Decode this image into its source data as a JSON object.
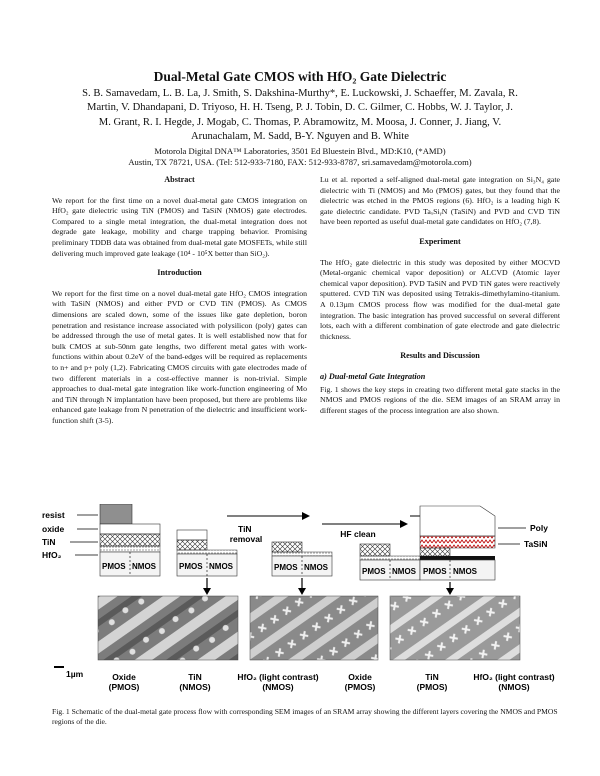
{
  "title": "Dual-Metal Gate CMOS with HfO₂ Gate Dielectric",
  "authors": [
    "S. B. Samavedam, L. B. La, J. Smith, S. Dakshina-Murthy*, E. Luckowski, J. Schaeffer, M. Zavala, R.",
    "Martin, V. Dhandapani, D. Triyoso, H. H. Tseng, P. J. Tobin, D. C. Gilmer, C. Hobbs, W. J. Taylor, J.",
    "M. Grant, R. I. Hegde, J. Mogab, C. Thomas, P. Abramowitz, M. Moosa, J. Conner, J. Jiang, V.",
    "Arunachalam, M. Sadd, B-Y. Nguyen and B. White"
  ],
  "affiliation": {
    "line1": "Motorola Digital DNA™ Laboratories, 3501 Ed Bluestein Blvd., MD:K10, (*AMD)",
    "line2": "Austin, TX 78721, USA. (Tel: 512-933-7180, FAX: 512-933-8787, sri.samavedam@motorola.com)"
  },
  "left_column": {
    "abstract_heading": "Abstract",
    "abstract_text": "We report for the first time on a novel dual-metal gate CMOS integration on HfO₂ gate dielectric using TiN (PMOS) and TaSiN (NMOS) gate electrodes. Compared to a single metal integration, the dual-metal integration does not degrade gate leakage, mobility and charge trapping behavior. Promising preliminary TDDB data was obtained from dual-metal gate MOSFETs, while still delivering much improved gate leakage (10⁴ - 10⁵X better than SiO₂).",
    "intro_heading": "Introduction",
    "intro_text": "We report for the first time on a novel dual-metal gate HfO₂ CMOS integration with TaSiN (NMOS) and either PVD or CVD TiN (PMOS). As CMOS dimensions are scaled down, some of the issues like gate depletion, boron penetration and resistance increase associated with polysilicon (poly) gates can be addressed through the use of metal gates. It is well established now that for bulk CMOS at sub-50nm gate lengths, two different metal gates with work-functions within about 0.2eV of the band-edges will be required as replacements to n+ and p+ poly (1,2). Fabricating CMOS circuits with gate electrodes made of two different materials in a cost-effective manner is non-trivial. Simple approaches to dual-metal gate integration like work-function engineering of Mo and TiN through N implantation have been proposed, but there are problems like enhanced gate leakage from N penetration of the dielectric and insufficient work-function shift (3-5)."
  },
  "right_column": {
    "lu_text": "Lu et al. reported a self-aligned dual-metal gate integration on Si₃N₄ gate dielectric with Ti (NMOS) and Mo (PMOS) gates, but they found that the dielectric was etched in the PMOS regions (6). HfO₂ is a leading high K gate dielectric candidate. PVD TaₓSiᵧN (TaSiN) and PVD and CVD TiN have been reported as useful dual-metal gate candidates on HfO₂ (7,8).",
    "experiment_heading": "Experiment",
    "experiment_text": "The HfO₂ gate dielectric in this study was deposited by either MOCVD (Metal-organic chemical vapor deposition) or ALCVD (Atomic layer chemical vapor deposition). PVD TaSiN and PVD TiN gates were reactively sputtered. CVD TiN was deposited using Tetrakis-dimethylamino-titanium. A 0.13µm CMOS process flow was modified for the dual-metal gate integration. The basic integration has proved successful on several different lots, each with a different combination of gate electrode and gate dielectric thickness.",
    "results_heading": "Results and Discussion",
    "sub_heading": "a)  Dual-metal Gate Integration",
    "results_text": "Fig. 1 shows the key steps in creating two different metal gate stacks in the NMOS and PMOS regions of the die. SEM images of an SRAM array in different stages of the process integration are also shown."
  },
  "figure": {
    "stack_labels": [
      "resist",
      "oxide",
      "TiN",
      "HfO₂"
    ],
    "step_labels": [
      "TiN removal",
      "HF clean"
    ],
    "right_labels": [
      "Poly",
      "TaSiN"
    ],
    "pmos": "PMOS",
    "nmos": "NMOS",
    "scale_bar": "1µm",
    "sem_captions": [
      {
        "line1": "Oxide",
        "line2": "(PMOS)"
      },
      {
        "line1": "TiN",
        "line2": "(NMOS)"
      },
      {
        "line1": "HfO₂ (light contrast)",
        "line2": "(NMOS)"
      },
      {
        "line1": "Oxide",
        "line2": "(PMOS)"
      },
      {
        "line1": "TiN",
        "line2": "(PMOS)"
      },
      {
        "line1": "HfO₂ (light contrast)",
        "line2": "(NMOS)"
      }
    ],
    "caption": "Fig. 1 Schematic of the dual-metal gate process flow with corresponding SEM images of an SRAM array showing the different layers covering the NMOS and PMOS regions of the die."
  }
}
